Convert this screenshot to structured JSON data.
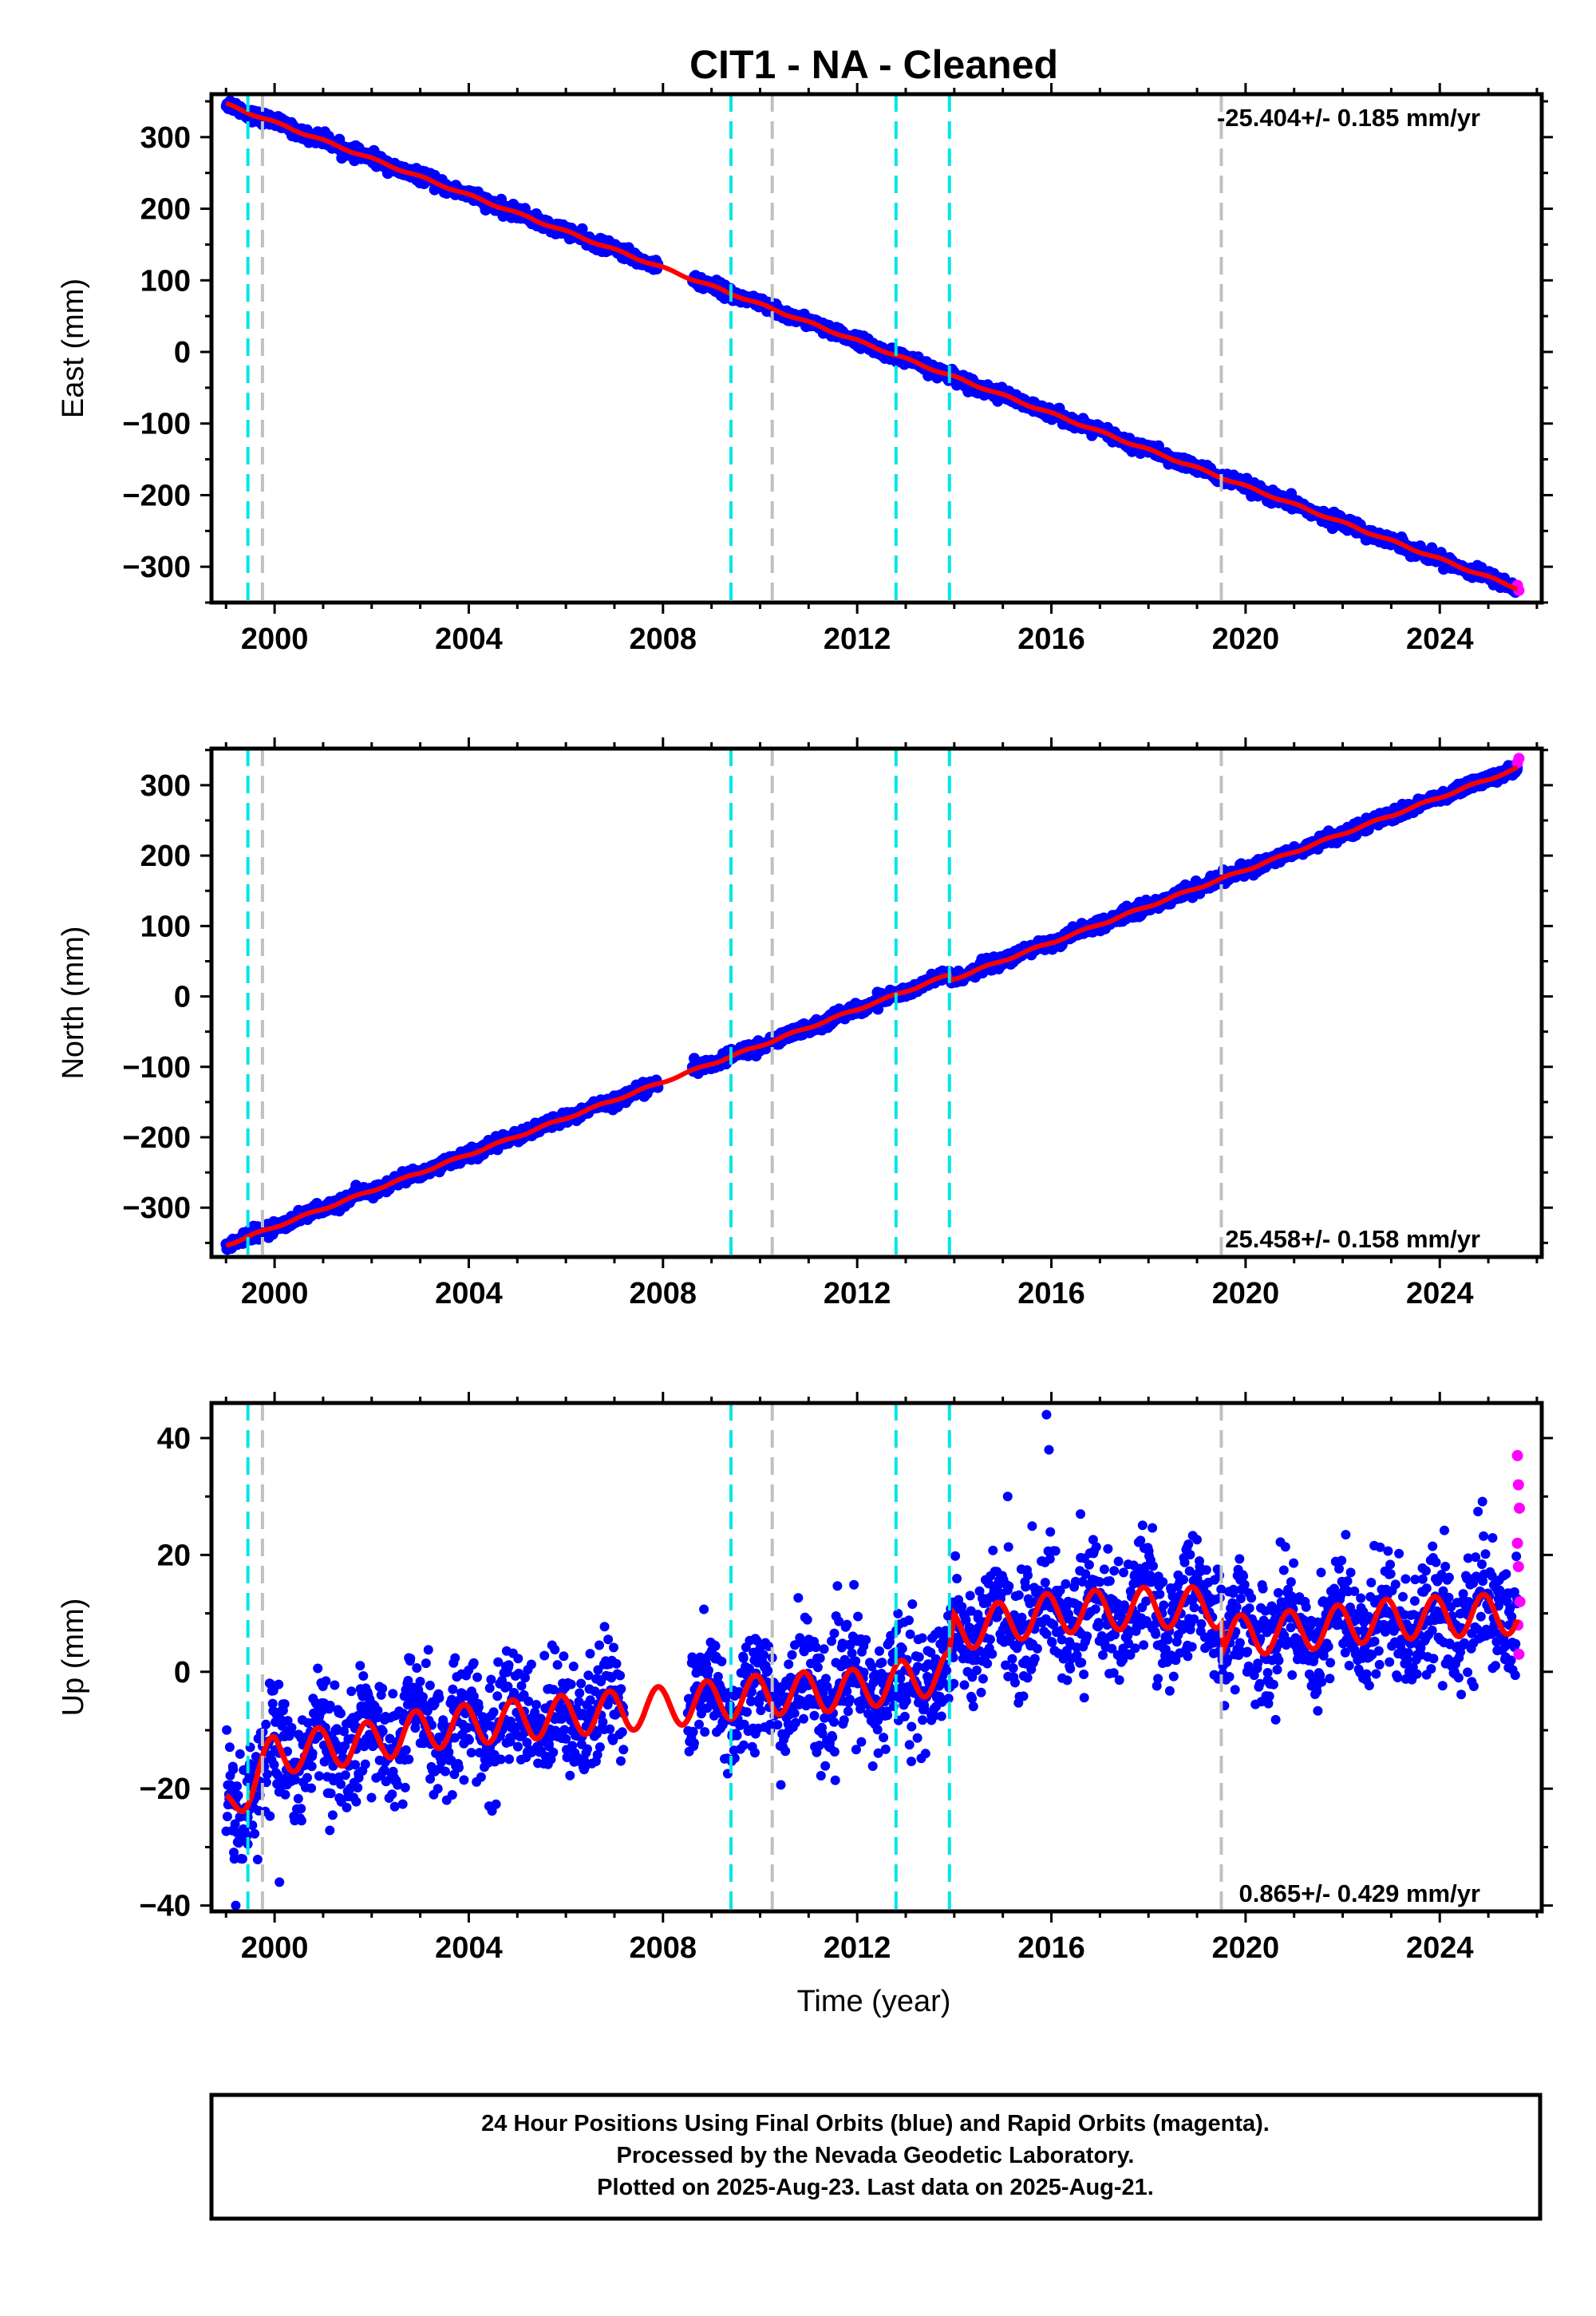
{
  "title": "CIT1  - NA - Cleaned",
  "xlabel": "Time (year)",
  "footer": {
    "line1": "24 Hour Positions Using Final Orbits (blue) and Rapid Orbits (magenta).",
    "line2": "Processed by the Nevada Geodetic Laboratory.",
    "line3": "Plotted on 2025-Aug-23. Last data on 2025-Aug-21."
  },
  "colors": {
    "final_orbits": "#0000ff",
    "rapid_orbits": "#ff00ff",
    "model_fit": "#ff0000",
    "event_cyan": "#00e5e5",
    "event_gray": "#c0c0c0"
  },
  "chart_data": [
    {
      "type": "scatter",
      "ylabel": "East (mm)",
      "rate": "-25.404+/- 0.185 mm/yr",
      "rate_position": "top-right",
      "xlim": [
        1998.7,
        2026.1
      ],
      "ylim": [
        -350,
        360
      ],
      "xticks": [
        2000,
        2004,
        2008,
        2012,
        2016,
        2020,
        2024
      ],
      "yticks": [
        -300,
        -200,
        -100,
        0,
        100,
        200,
        300
      ],
      "trend": {
        "x": [
          1999.0,
          2025.6
        ],
        "y": [
          346,
          -330
        ]
      },
      "fit_gap": [
        2007.9,
        2008.6
      ],
      "residual_mm": 4,
      "offset_steps": [],
      "seasonal": {
        "amplitude": 1.5,
        "phase": 0.2
      },
      "rapid_points": {
        "x": [
          2025.6,
          2025.63
        ],
        "y": [
          -326,
          -333
        ]
      }
    },
    {
      "type": "scatter",
      "ylabel": "North (mm)",
      "rate": "25.458+/- 0.158 mm/yr",
      "rate_position": "bottom-right",
      "xlim": [
        1998.7,
        2026.1
      ],
      "ylim": [
        -370,
        352
      ],
      "xticks": [
        2000,
        2004,
        2008,
        2012,
        2016,
        2020,
        2024
      ],
      "yticks": [
        -300,
        -200,
        -100,
        0,
        100,
        200,
        300
      ],
      "trend": {
        "x": [
          1999.0,
          2025.6
        ],
        "y": [
          -353,
          332
        ]
      },
      "fit_gap": [
        2007.9,
        2008.6
      ],
      "residual_mm": 4,
      "offset_steps": [
        {
          "x": 2013.9,
          "dy": -8
        }
      ],
      "seasonal": {
        "amplitude": 1.5,
        "phase": 0.6
      },
      "rapid_points": {
        "x": [
          2025.6,
          2025.63
        ],
        "y": [
          332,
          338
        ]
      }
    },
    {
      "type": "scatter",
      "ylabel": "Up (mm)",
      "rate": "0.865+/- 0.429 mm/yr",
      "rate_position": "bottom-right",
      "xlim": [
        1998.7,
        2026.1
      ],
      "ylim": [
        -41,
        46
      ],
      "xticks": [
        2000,
        2004,
        2008,
        2012,
        2016,
        2020,
        2024
      ],
      "yticks": [
        -40,
        -20,
        0,
        20,
        40
      ],
      "fit_trend": {
        "x": [
          1999.0,
          2000.0,
          2001.0,
          2002.0,
          2003.0,
          2004.0,
          2006.0,
          2008.0,
          2010.0,
          2012.0,
          2013.9,
          2014.0,
          2016.0,
          2018.0,
          2019.5,
          2019.55,
          2021.0,
          2023.0,
          2025.6
        ],
        "y": [
          -24,
          -14,
          -13,
          -12,
          -10,
          -9,
          -7.5,
          -6,
          -4,
          -3,
          0,
          7,
          10,
          11,
          11,
          6,
          7,
          9,
          10
        ]
      },
      "seasonal": {
        "amplitude": 3.5,
        "phase": 0.35
      },
      "residual_mm": 5,
      "fit_gap": [],
      "outliers": {
        "x": [
          2015.9,
          2015.95,
          2015.1,
          2016.6,
          1999.2,
          2000.1
        ],
        "y": [
          44,
          38,
          30,
          27,
          -40,
          -36
        ]
      },
      "rapid_points": {
        "x": [
          2025.6,
          2025.62,
          2025.64,
          2025.6,
          2025.62,
          2025.65,
          2025.61,
          2025.63
        ],
        "y": [
          37,
          32,
          28,
          22,
          18,
          12,
          8,
          3
        ]
      }
    }
  ],
  "events": {
    "cyan": [
      1999.45,
      2009.4,
      2012.8,
      2013.9
    ],
    "gray": [
      1999.75,
      2010.25,
      2019.5
    ]
  }
}
